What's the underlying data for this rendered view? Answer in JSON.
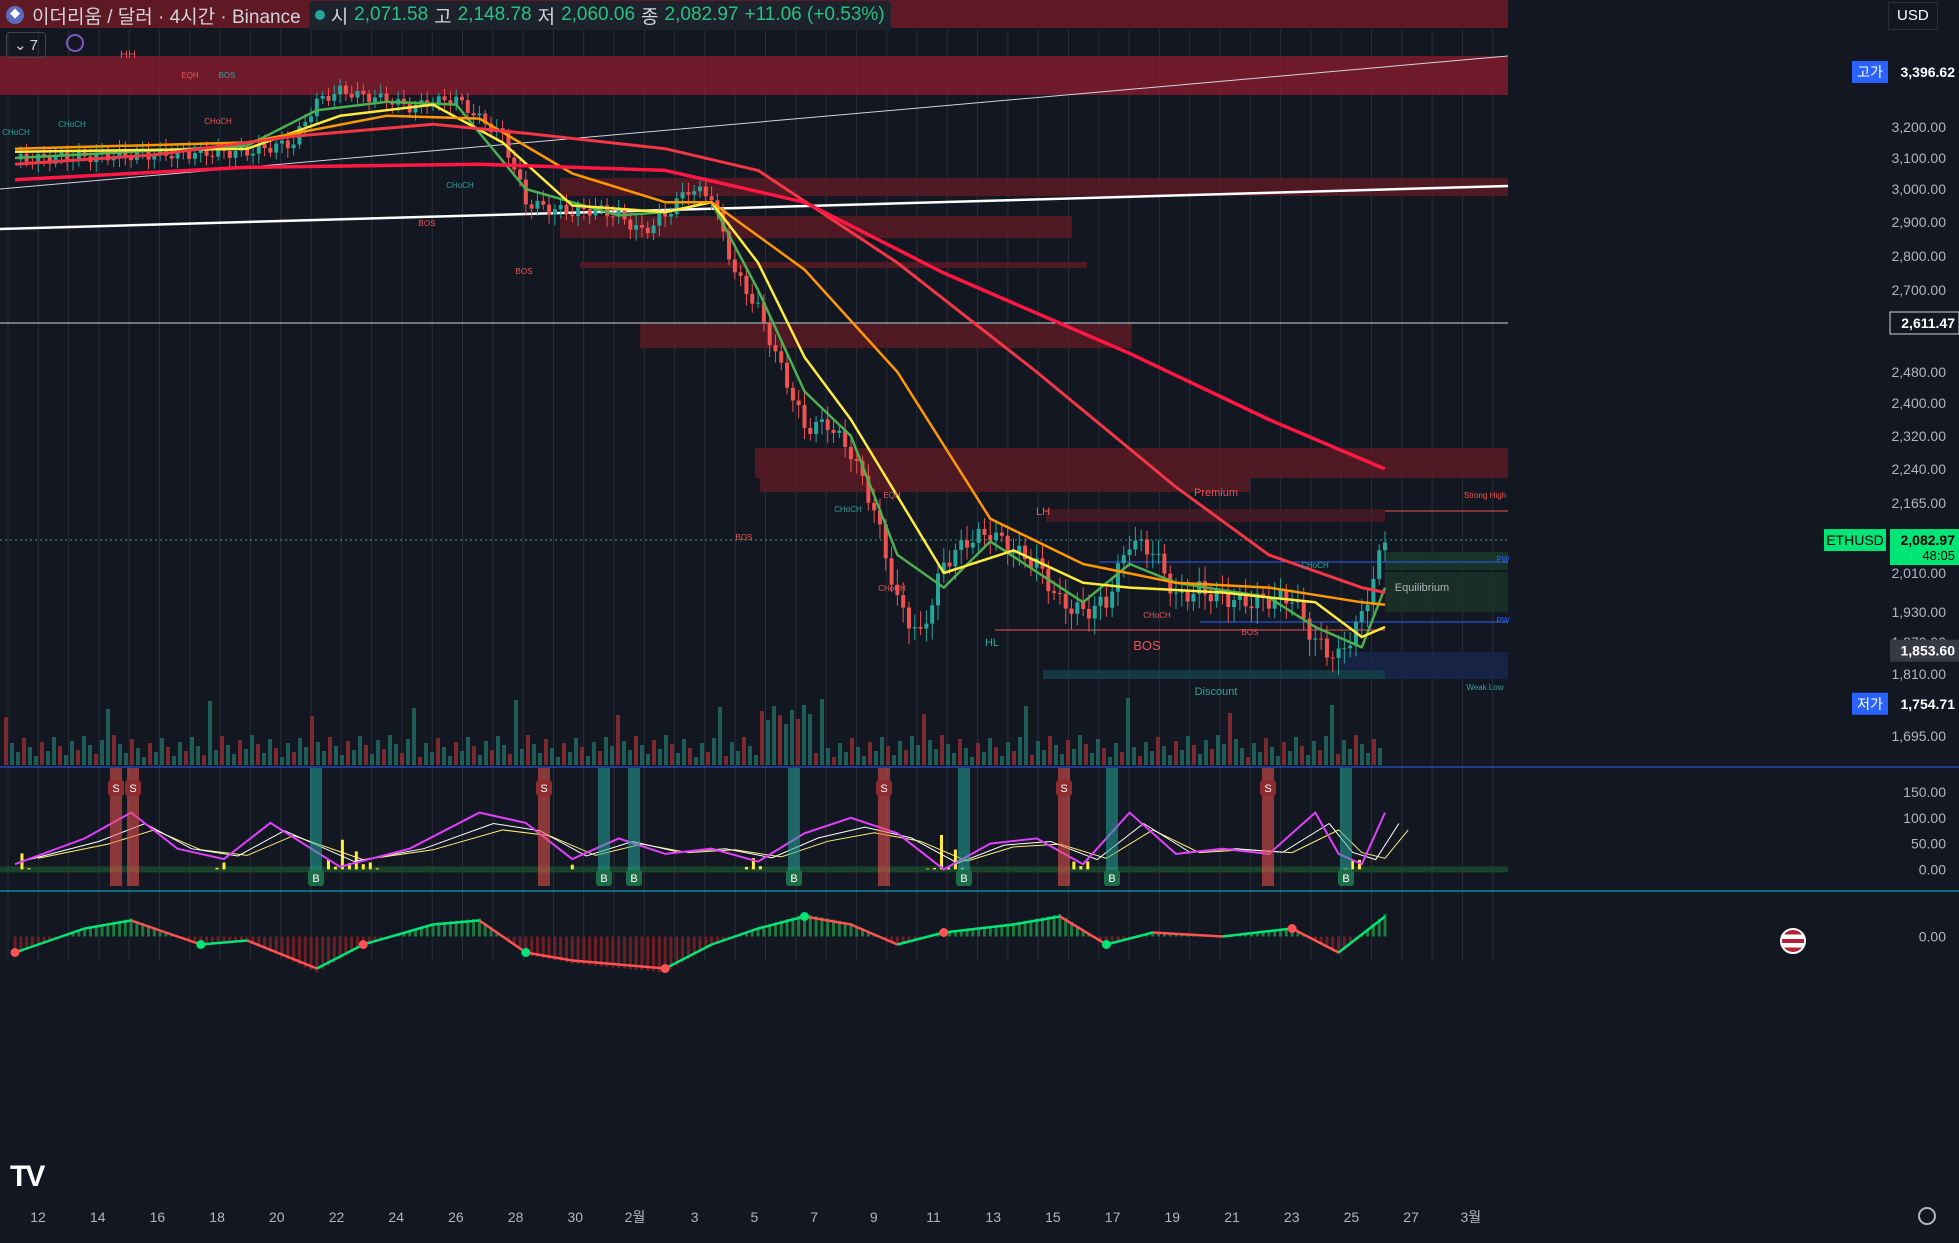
{
  "header": {
    "symbol_title": "이더리움 / 달러 · 4시간 · Binance",
    "open_label": "시",
    "open": "2,071.58",
    "high_label": "고",
    "high": "2,148.78",
    "low_label": "저",
    "low": "2,060.06",
    "close_label": "종",
    "close": "2,082.97",
    "change": "+11.06 (+0.53%)",
    "indicator_count": "7",
    "currency": "USD"
  },
  "colors": {
    "bg": "#131722",
    "up": "#26a69a",
    "down": "#ef5350",
    "ema_fast": "#4caf50",
    "ema_mid": "#ffeb3b",
    "ema_slow": "#ff9800",
    "ema_long": "#f23645",
    "ema_longer": "#ff1744",
    "trendline": "#ffffff"
  },
  "chart_data": [
    {
      "type": "candlestick",
      "title": "",
      "ylim": [
        1640,
        3500
      ],
      "y_ticks": [
        "1,695.00",
        "1,810.00",
        "1,870.00",
        "1,930.00",
        "2,010.00",
        "2,165.00",
        "2,240.00",
        "2,320.00",
        "2,400.00",
        "2,480.00",
        "2,700.00",
        "2,800.00",
        "2,900.00",
        "3,000.00",
        "3,100.00",
        "3,200.00"
      ],
      "x_ticks": [
        "12",
        "14",
        "16",
        "18",
        "20",
        "22",
        "24",
        "26",
        "28",
        "30",
        "2월",
        "3",
        "5",
        "7",
        "9",
        "11",
        "13",
        "15",
        "17",
        "19",
        "21",
        "23",
        "25",
        "27",
        "3월"
      ],
      "price_labels": [
        {
          "label": "고가",
          "value": "3,396.62"
        },
        {
          "label": "",
          "value": "2,611.47"
        },
        {
          "label": "ETHUSD",
          "value": "2,082.97",
          "sub": "48:05"
        },
        {
          "label": "",
          "value": "1,853.60"
        },
        {
          "label": "저가",
          "value": "1,754.71"
        }
      ],
      "annotations": [
        "HH",
        "EQH",
        "BOS",
        "CHoCH",
        "CHoCH",
        "BOS",
        "CHoCH",
        "BOS",
        "CHoCH",
        "CHoCH",
        "EQH",
        "LH",
        "Premium",
        "Strong High",
        "CHoCH",
        "PW",
        "Equilibrium",
        "CHoCH",
        "BOS",
        "PW",
        "HL",
        "BOS",
        "Discount",
        "Weak Low",
        "CHoCH",
        "BOS"
      ],
      "close_path": [
        [
          0,
          3095
        ],
        [
          5,
          3110
        ],
        [
          10,
          3120
        ],
        [
          12,
          3150
        ],
        [
          13,
          3290
        ],
        [
          14,
          3330
        ],
        [
          15,
          3310
        ],
        [
          16,
          3300
        ],
        [
          17,
          3270
        ],
        [
          18,
          3290
        ],
        [
          19,
          3300
        ],
        [
          20,
          3230
        ],
        [
          21,
          3170
        ],
        [
          22,
          2960
        ],
        [
          23,
          2940
        ],
        [
          24,
          2930
        ],
        [
          25,
          2940
        ],
        [
          26,
          2920
        ],
        [
          27,
          2870
        ],
        [
          28,
          2920
        ],
        [
          29,
          3000
        ],
        [
          30,
          2980
        ],
        [
          31,
          2750
        ],
        [
          32,
          2650
        ],
        [
          33,
          2490
        ],
        [
          34,
          2340
        ],
        [
          35,
          2350
        ],
        [
          36,
          2280
        ],
        [
          37,
          2150
        ],
        [
          38,
          1950
        ],
        [
          39,
          1880
        ],
        [
          40,
          2030
        ],
        [
          41,
          2080
        ],
        [
          42,
          2100
        ],
        [
          43,
          2060
        ],
        [
          44,
          2030
        ],
        [
          45,
          1950
        ],
        [
          46,
          1930
        ],
        [
          47,
          1950
        ],
        [
          48,
          2080
        ],
        [
          49,
          2060
        ],
        [
          50,
          1960
        ],
        [
          51,
          1975
        ],
        [
          52,
          1960
        ],
        [
          53,
          1950
        ],
        [
          54,
          1955
        ],
        [
          55,
          1960
        ],
        [
          56,
          1870
        ],
        [
          57,
          1840
        ],
        [
          58,
          1920
        ],
        [
          59,
          2082.97
        ]
      ],
      "series": [
        {
          "name": "",
          "kind": "ema_fast",
          "values": [
            [
              0,
              3100
            ],
            [
              10,
              3140
            ],
            [
              13,
              3260
            ],
            [
              16,
              3290
            ],
            [
              19,
              3280
            ],
            [
              22,
              3000
            ],
            [
              26,
              2920
            ],
            [
              28,
              2930
            ],
            [
              30,
              2960
            ],
            [
              32,
              2700
            ],
            [
              34,
              2430
            ],
            [
              36,
              2320
            ],
            [
              38,
              2050
            ],
            [
              40,
              1980
            ],
            [
              42,
              2080
            ],
            [
              46,
              1950
            ],
            [
              48,
              2030
            ],
            [
              50,
              1990
            ],
            [
              54,
              1960
            ],
            [
              56,
              1900
            ],
            [
              58,
              1860
            ],
            [
              59,
              1980
            ]
          ]
        },
        {
          "name": "",
          "kind": "ema_mid",
          "values": [
            [
              0,
              3120
            ],
            [
              10,
              3130
            ],
            [
              14,
              3240
            ],
            [
              18,
              3280
            ],
            [
              21,
              3150
            ],
            [
              24,
              2950
            ],
            [
              28,
              2930
            ],
            [
              30,
              2960
            ],
            [
              32,
              2780
            ],
            [
              34,
              2520
            ],
            [
              36,
              2360
            ],
            [
              38,
              2180
            ],
            [
              40,
              2010
            ],
            [
              43,
              2060
            ],
            [
              46,
              1990
            ],
            [
              48,
              1980
            ],
            [
              52,
              1970
            ],
            [
              56,
              1950
            ],
            [
              58,
              1880
            ],
            [
              59,
              1900
            ]
          ]
        },
        {
          "name": "",
          "kind": "ema_slow",
          "values": [
            [
              0,
              3130
            ],
            [
              10,
              3150
            ],
            [
              16,
              3240
            ],
            [
              20,
              3230
            ],
            [
              24,
              3050
            ],
            [
              28,
              2960
            ],
            [
              30,
              2960
            ],
            [
              34,
              2760
            ],
            [
              38,
              2480
            ],
            [
              42,
              2130
            ],
            [
              46,
              2030
            ],
            [
              50,
              1990
            ],
            [
              54,
              1980
            ],
            [
              58,
              1950
            ],
            [
              59,
              1945
            ]
          ]
        },
        {
          "name": "",
          "kind": "ema_long",
          "values": [
            [
              0,
              3080
            ],
            [
              6,
              3110
            ],
            [
              12,
              3170
            ],
            [
              18,
              3210
            ],
            [
              22,
              3180
            ],
            [
              28,
              3130
            ],
            [
              32,
              3060
            ],
            [
              38,
              2780
            ],
            [
              44,
              2480
            ],
            [
              50,
              2200
            ],
            [
              54,
              2050
            ],
            [
              58,
              1980
            ],
            [
              59,
              1970
            ]
          ]
        },
        {
          "name": "",
          "kind": "ema_longer",
          "values": [
            [
              0,
              3030
            ],
            [
              10,
              3070
            ],
            [
              20,
              3080
            ],
            [
              28,
              3060
            ],
            [
              34,
              2960
            ],
            [
              40,
              2750
            ],
            [
              48,
              2530
            ],
            [
              54,
              2360
            ],
            [
              59,
              2240
            ]
          ]
        }
      ]
    },
    {
      "type": "line",
      "title": "",
      "ylim": [
        -40,
        150
      ],
      "y_ticks": [
        "150.00",
        "100.00",
        "50.00",
        "0.00"
      ],
      "series": [
        {
          "name": "",
          "kind": "oscillator_main",
          "values": [
            [
              0,
              10
            ],
            [
              3,
              60
            ],
            [
              5,
              110
            ],
            [
              7,
              40
            ],
            [
              9,
              20
            ],
            [
              11,
              90
            ],
            [
              14,
              5
            ],
            [
              17,
              40
            ],
            [
              20,
              110
            ],
            [
              22,
              90
            ],
            [
              24,
              20
            ],
            [
              26,
              60
            ],
            [
              28,
              30
            ],
            [
              30,
              40
            ],
            [
              32,
              15
            ],
            [
              34,
              70
            ],
            [
              36,
              100
            ],
            [
              38,
              70
            ],
            [
              40,
              0
            ],
            [
              42,
              50
            ],
            [
              44,
              60
            ],
            [
              46,
              10
            ],
            [
              48,
              110
            ],
            [
              50,
              30
            ],
            [
              52,
              40
            ],
            [
              54,
              30
            ],
            [
              56,
              110
            ],
            [
              57,
              30
            ],
            [
              58,
              10
            ],
            [
              59,
              110
            ]
          ]
        }
      ],
      "signals": [
        {
          "label": "S"
        },
        {
          "label": "S"
        },
        {
          "label": "B"
        },
        {
          "label": "S"
        },
        {
          "label": "B"
        },
        {
          "label": "B"
        },
        {
          "label": "B"
        },
        {
          "label": "S"
        },
        {
          "label": "B"
        },
        {
          "label": "S"
        },
        {
          "label": "B"
        },
        {
          "label": "S"
        },
        {
          "label": "B"
        }
      ]
    },
    {
      "type": "line",
      "title": "",
      "y_ticks": [
        "0.00"
      ],
      "series": [
        {
          "name": "",
          "kind": "momentum",
          "values": [
            [
              0,
              -20
            ],
            [
              3,
              10
            ],
            [
              5,
              20
            ],
            [
              8,
              -10
            ],
            [
              10,
              -5
            ],
            [
              13,
              -40
            ],
            [
              15,
              -10
            ],
            [
              18,
              15
            ],
            [
              20,
              20
            ],
            [
              22,
              -20
            ],
            [
              24,
              -30
            ],
            [
              26,
              -35
            ],
            [
              28,
              -40
            ],
            [
              30,
              -10
            ],
            [
              32,
              10
            ],
            [
              34,
              25
            ],
            [
              36,
              15
            ],
            [
              38,
              -10
            ],
            [
              40,
              5
            ],
            [
              43,
              15
            ],
            [
              45,
              25
            ],
            [
              47,
              -10
            ],
            [
              49,
              5
            ],
            [
              52,
              0
            ],
            [
              55,
              10
            ],
            [
              57,
              -20
            ],
            [
              59,
              25
            ]
          ]
        }
      ]
    }
  ]
}
